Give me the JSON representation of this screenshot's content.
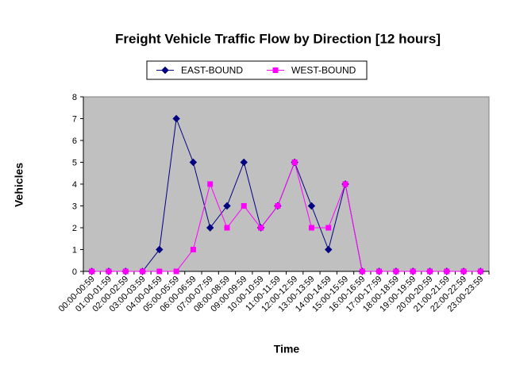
{
  "chart_data": {
    "type": "line",
    "title": "Freight Vehicle Traffic Flow by Direction [12 hours]",
    "x_label": "Time",
    "y_label": "Vehicles",
    "categories": [
      "00:00-00:59",
      "01:00-01:59",
      "02:00-02:59",
      "03:00-03:59",
      "04:00-04:59",
      "05:00-05:59",
      "06:00-06:59",
      "07:00-07:59",
      "08:00-08:59",
      "09:00-09:59",
      "10:00-10:59",
      "11:00-11:59",
      "12:00-12:59",
      "13:00-13:59",
      "14:00-14:59",
      "15:00-15:59",
      "16:00-16:59",
      "17:00-17:59",
      "18:00-18:59",
      "19:00-19:59",
      "20:00-20:59",
      "21:00-21:59",
      "22:00-22:59",
      "23:00-23:59"
    ],
    "series": [
      {
        "name": "EAST-BOUND",
        "color": "#000080",
        "marker": "diamond",
        "values": [
          0,
          0,
          0,
          0,
          1,
          7,
          5,
          2,
          3,
          5,
          2,
          3,
          5,
          3,
          1,
          4,
          0,
          0,
          0,
          0,
          0,
          0,
          0,
          0
        ]
      },
      {
        "name": "WEST-BOUND",
        "color": "#ff00ff",
        "marker": "square",
        "values": [
          0,
          0,
          0,
          0,
          0,
          0,
          1,
          4,
          2,
          3,
          2,
          3,
          5,
          2,
          2,
          4,
          0,
          0,
          0,
          0,
          0,
          0,
          0,
          0
        ]
      }
    ],
    "ylim": [
      0,
      8
    ],
    "yticks": [
      0,
      1,
      2,
      3,
      4,
      5,
      6,
      7,
      8
    ],
    "grid": false,
    "legend": "top"
  }
}
